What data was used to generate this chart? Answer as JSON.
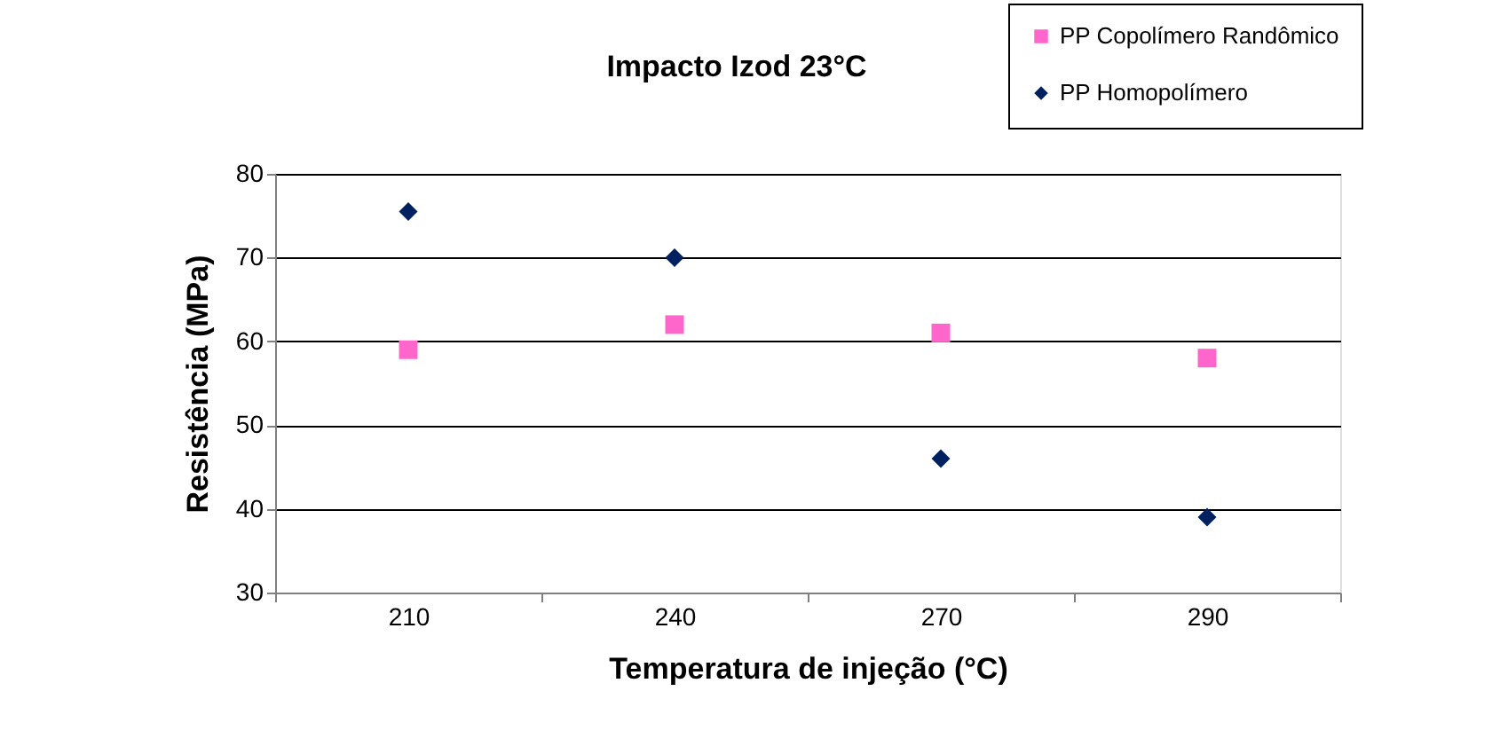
{
  "chart_data": {
    "type": "scatter",
    "title": "Impacto Izod 23°C",
    "xlabel": "Temperatura de injeção (°C)",
    "ylabel": "Resistência (MPa)",
    "categories": [
      "210",
      "240",
      "270",
      "290"
    ],
    "series": [
      {
        "name": "PP Copolímero Randômico",
        "color": "#ff66cc",
        "marker": "square",
        "values": [
          59,
          62,
          61,
          58
        ]
      },
      {
        "name": "PP Homopolímero",
        "color": "#002060",
        "marker": "diamond",
        "values": [
          75.5,
          70,
          46,
          39
        ]
      }
    ],
    "ylim": [
      30,
      80
    ],
    "yticks": [
      30,
      40,
      50,
      60,
      70,
      80
    ],
    "grid": "y",
    "legend": "top right"
  }
}
